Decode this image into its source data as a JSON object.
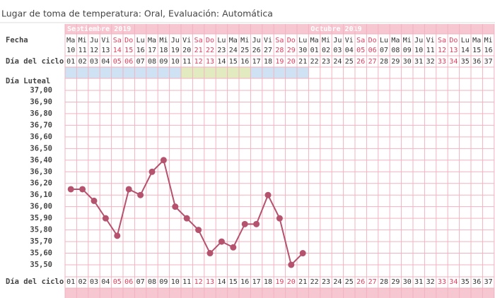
{
  "header": {
    "text": "Lugar de toma de temperatura: Oral, Evaluación: Automática"
  },
  "chart_data": {
    "type": "line",
    "months": [
      {
        "name": "Septiembre 2019",
        "days": 21
      },
      {
        "name": "Octubre 2019",
        "days": 16
      }
    ],
    "row_labels": {
      "date": "Fecha",
      "cycle_top": "Día del ciclo",
      "luteal": "Día Luteal",
      "cycle_bottom": "Día del ciclo"
    },
    "weekdays": [
      "Ma",
      "Mi",
      "Ju",
      "Vi",
      "Sa",
      "Do",
      "Lu",
      "Ma",
      "Mi",
      "Ju",
      "Vi",
      "Sa",
      "Do",
      "Lu",
      "Ma",
      "Mi",
      "Ju",
      "Vi",
      "Sa",
      "Do",
      "Lu",
      "Ma",
      "Mi",
      "Ju",
      "Vi",
      "Sa",
      "Do",
      "Lu",
      "Ma",
      "Mi",
      "Ju",
      "Vi",
      "Sa",
      "Do",
      "Lu",
      "Ma",
      "Mi"
    ],
    "categories": [
      "10",
      "11",
      "12",
      "13",
      "14",
      "15",
      "16",
      "17",
      "18",
      "19",
      "20",
      "21",
      "22",
      "23",
      "24",
      "25",
      "26",
      "27",
      "28",
      "29",
      "30",
      "01",
      "02",
      "03",
      "04",
      "05",
      "06",
      "07",
      "08",
      "09",
      "10",
      "11",
      "12",
      "13",
      "14",
      "15",
      "16"
    ],
    "cycle_days": [
      "01",
      "02",
      "03",
      "04",
      "05",
      "06",
      "07",
      "08",
      "09",
      "10",
      "11",
      "12",
      "13",
      "14",
      "15",
      "16",
      "17",
      "18",
      "19",
      "20",
      "21",
      "22",
      "23",
      "24",
      "25",
      "26",
      "27",
      "28",
      "29",
      "30",
      "31",
      "32",
      "33",
      "34",
      "35",
      "36",
      "37"
    ],
    "label_colors": [
      "#333",
      "#333",
      "#333",
      "#333",
      "#e0405e",
      "#e0405e",
      "#333",
      "#333",
      "#333",
      "#333",
      "#333",
      "#e0405e",
      "#e0405e",
      "#333",
      "#333",
      "#333",
      "#333",
      "#333",
      "#e0405e",
      "#e0405e",
      "#333",
      "#333",
      "#333",
      "#333",
      "#333",
      "#e0405e",
      "#e0405e",
      "#333",
      "#333",
      "#333",
      "#333",
      "#333",
      "#e0405e",
      "#e0405e",
      "#333",
      "#333",
      "#333"
    ],
    "phase_colors": [
      "#cfe2f3",
      "#cfe2f3",
      "#cfe2f3",
      "#cfe2f3",
      "#cfe2f3",
      "#cfe2f3",
      "#cfe2f3",
      "#cfe2f3",
      "#cfe2f3",
      "#cfe2f3",
      "#e2ebbf",
      "#e2ebbf",
      "#e2ebbf",
      "#e2ebbf",
      "#e2ebbf",
      "#e2ebbf",
      "#cfe2f3",
      "#cfe2f3",
      "#cfe2f3",
      "#cfe2f3",
      "#cfe2f3",
      null,
      null,
      null,
      null,
      null,
      null,
      null,
      null,
      null,
      null,
      null,
      null,
      null,
      null,
      null,
      null
    ],
    "series": [
      {
        "color": "#b5536f",
        "values": [
          36.15,
          36.15,
          36.05,
          35.9,
          35.75,
          36.15,
          36.1,
          36.3,
          36.4,
          36.0,
          35.9,
          35.8,
          35.6,
          35.7,
          35.65,
          35.85,
          35.85,
          36.1,
          35.9,
          35.5,
          35.6,
          null,
          null,
          null,
          null,
          null,
          null,
          null,
          null,
          null,
          null,
          null,
          null,
          null,
          null,
          null,
          null
        ]
      }
    ],
    "ylim": [
      35.5,
      37.0
    ],
    "yticks": [
      {
        "value": 37.0,
        "label": "37,00"
      },
      {
        "value": 36.9,
        "label": "36,90"
      },
      {
        "value": 36.8,
        "label": "36,80"
      },
      {
        "value": 36.7,
        "label": "36,70"
      },
      {
        "value": 36.6,
        "label": "36,60"
      },
      {
        "value": 36.5,
        "label": "36,50"
      },
      {
        "value": 36.4,
        "label": "36,40"
      },
      {
        "value": 36.3,
        "label": "36,30"
      },
      {
        "value": 36.2,
        "label": "36,20"
      },
      {
        "value": 36.1,
        "label": "36,10"
      },
      {
        "value": 36.0,
        "label": "36,00"
      },
      {
        "value": 35.9,
        "label": "35,90"
      },
      {
        "value": 35.8,
        "label": "35,80"
      },
      {
        "value": 35.7,
        "label": "35,70"
      },
      {
        "value": 35.6,
        "label": "35,60"
      },
      {
        "value": 35.5,
        "label": "35,50"
      }
    ],
    "grid": true,
    "grid_color": "#f2b3c1",
    "band_color": "#f6c6d1"
  }
}
